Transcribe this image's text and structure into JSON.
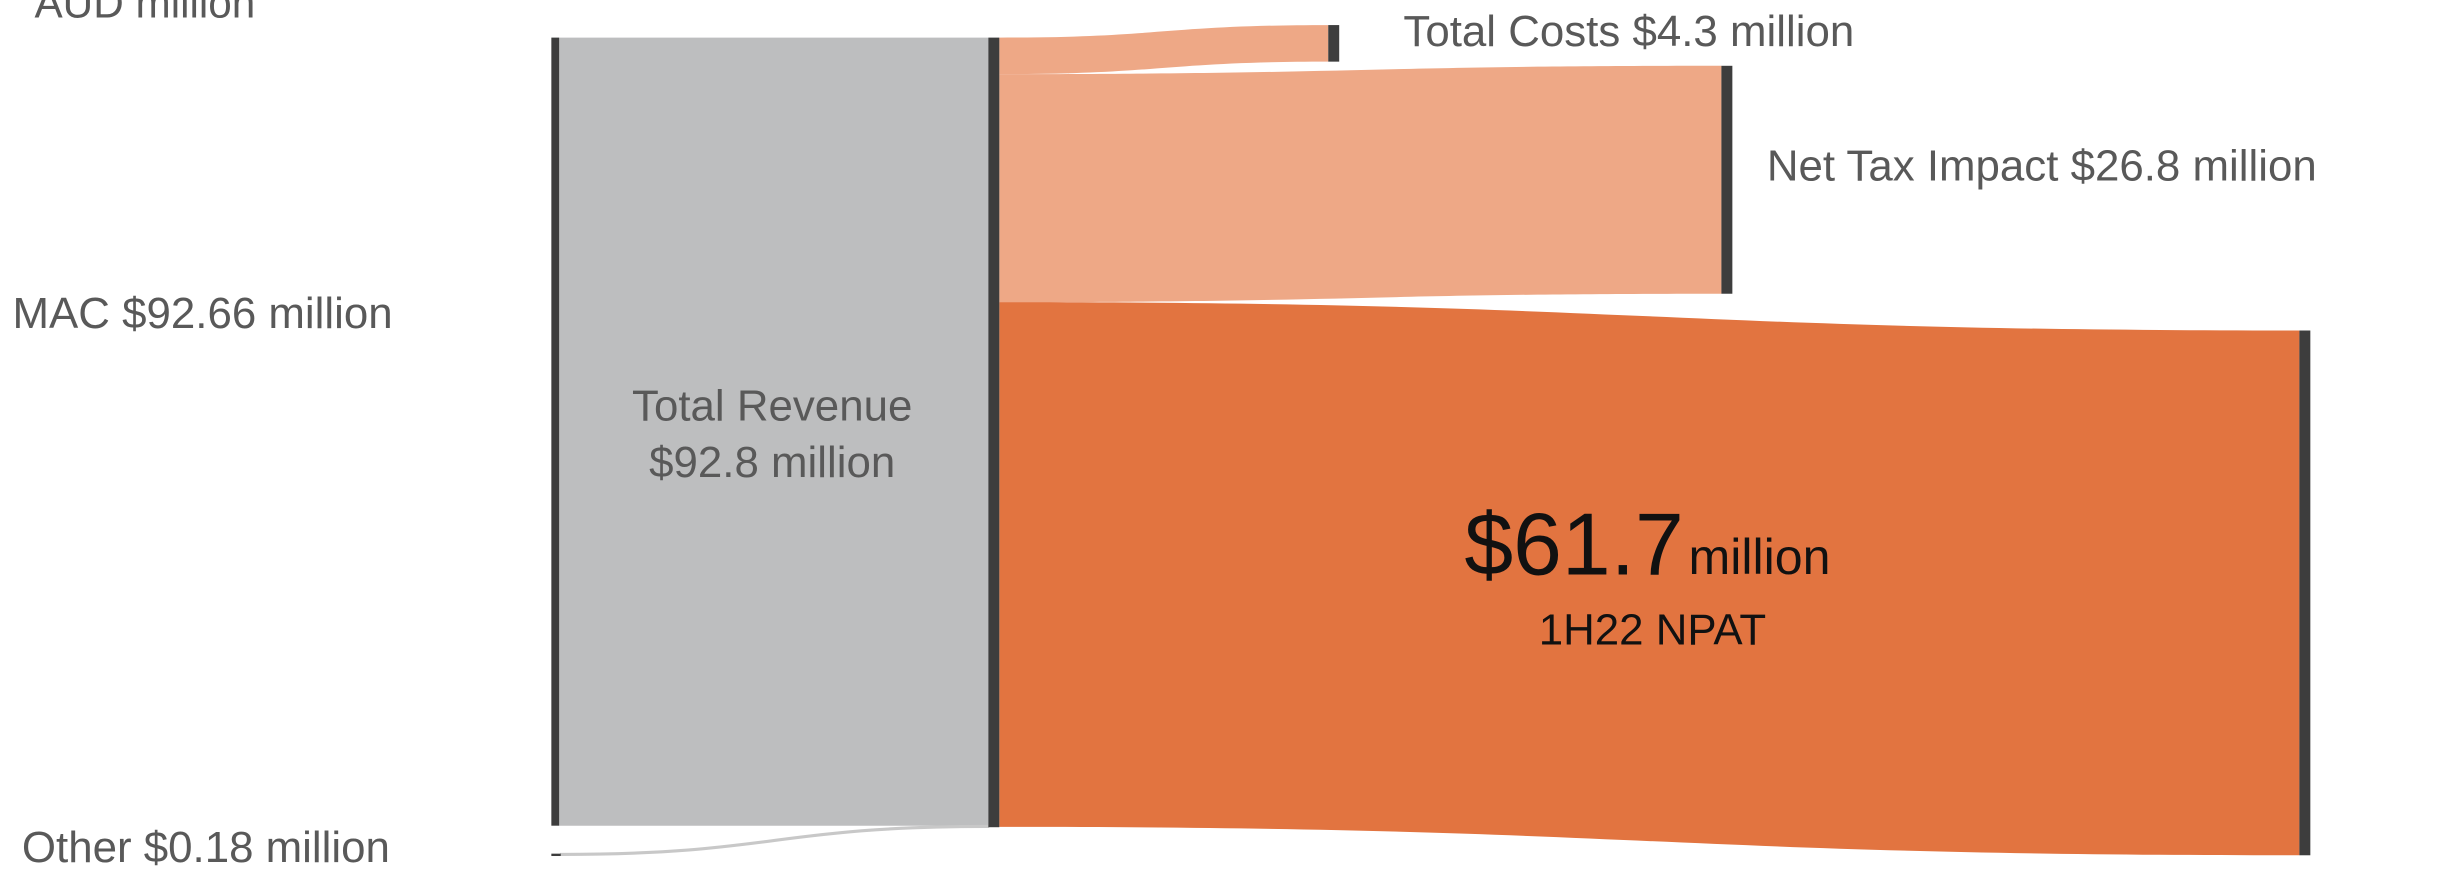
{
  "chart_data": {
    "type": "sankey",
    "title": "AUD million",
    "nodes": [
      {
        "label": "MAC $92.66 million"
      },
      {
        "label": "Other $0.18 million"
      },
      {
        "label": [
          "Total Revenue",
          "$92.8 million"
        ]
      },
      {
        "label": "Total Costs $4.3 million"
      },
      {
        "label": "Net Tax Impact $26.8 million"
      },
      {
        "label": "$61.7",
        "unit": "million",
        "sublabel": "1H22 NPAT"
      }
    ],
    "links": [
      {
        "source": 0,
        "target": 2,
        "value": 92.66,
        "color": "#bdbebf"
      },
      {
        "source": 1,
        "target": 2,
        "value": 0.18,
        "color": "#c8c8c8"
      },
      {
        "source": 2,
        "target": 3,
        "value": 4.3,
        "color": "#eea886"
      },
      {
        "source": 2,
        "target": 4,
        "value": 26.8,
        "color": "#eea886"
      },
      {
        "source": 2,
        "target": 5,
        "value": 61.7,
        "color": "#e27440"
      }
    ],
    "node_color": "#3d3d3d"
  }
}
